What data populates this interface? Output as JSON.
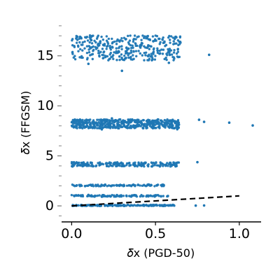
{
  "chart_data": {
    "type": "scatter",
    "title": "",
    "xlabel": "𝛿x (PGD-50)",
    "ylabel": "𝛿x (FFGSM)",
    "xlim": [
      -0.06,
      1.13
    ],
    "ylim": [
      -1.6,
      18.2
    ],
    "x_ticks": [
      0.0,
      0.5,
      1.0
    ],
    "x_tick_labels": [
      "0.0",
      "0.5",
      "1.0"
    ],
    "y_ticks": [
      0,
      5,
      10,
      15
    ],
    "y_tick_labels": [
      "0",
      "5",
      "10",
      "15"
    ],
    "y_minor_ticks": [
      -1,
      1,
      2,
      3,
      4,
      6,
      7,
      8,
      9,
      11,
      12,
      13,
      14,
      16,
      17,
      18
    ],
    "grid": false,
    "legend": null,
    "colors": {
      "points": "#1f77b4",
      "reference_line": "#000000",
      "axes": "#000000"
    },
    "series": [
      {
        "points": [
          [
            0.04,
            0.05
          ],
          [
            0.11,
            0.02
          ],
          [
            0.22,
            0.08
          ],
          [
            0.28,
            0.03
          ],
          [
            0.54,
            0.01
          ],
          [
            0.74,
            0.03
          ],
          [
            0.79,
            0.04
          ],
          [
            0.04,
            1.04
          ],
          [
            0.1,
            1.1
          ],
          [
            0.18,
            0.92
          ],
          [
            0.27,
            1.08
          ],
          [
            0.47,
            1.03
          ],
          [
            0.57,
            0.95
          ],
          [
            0.03,
            2.05
          ],
          [
            0.08,
            1.98
          ],
          [
            0.2,
            2.12
          ],
          [
            0.27,
            2.03
          ],
          [
            0.46,
            2.14
          ],
          [
            0.55,
            2.06
          ],
          [
            0.05,
            4.08
          ],
          [
            0.12,
            4.3
          ],
          [
            0.21,
            3.98
          ],
          [
            0.3,
            4.22
          ],
          [
            0.43,
            4.25
          ],
          [
            0.56,
            4.1
          ],
          [
            0.62,
            3.95
          ],
          [
            0.75,
            4.37
          ],
          [
            0.04,
            8.5
          ],
          [
            0.11,
            8.12
          ],
          [
            0.18,
            7.65
          ],
          [
            0.24,
            8.74
          ],
          [
            0.31,
            8.31
          ],
          [
            0.39,
            8.08
          ],
          [
            0.48,
            8.42
          ],
          [
            0.56,
            8.31
          ],
          [
            0.63,
            7.66
          ],
          [
            0.76,
            8.61
          ],
          [
            0.79,
            8.4
          ],
          [
            0.94,
            8.32
          ],
          [
            1.08,
            8.04
          ],
          [
            0.05,
            16.9
          ],
          [
            0.1,
            14.2
          ],
          [
            0.17,
            16.4
          ],
          [
            0.23,
            15.8
          ],
          [
            0.3,
            13.5
          ],
          [
            0.45,
            15.8
          ],
          [
            0.52,
            16.7
          ],
          [
            0.58,
            14.3
          ],
          [
            0.82,
            15.1
          ]
        ]
      }
    ],
    "reference_line": {
      "style": "dashed",
      "x": [
        0.0,
        1.0
      ],
      "y": [
        0.0,
        1.0
      ]
    },
    "clusters": [
      {
        "x_range": [
          0.0,
          0.62
        ],
        "y_center": 0.05,
        "y_spread": 0.06,
        "count": 180
      },
      {
        "x_range": [
          0.0,
          0.58
        ],
        "y_center": 1.0,
        "y_spread": 0.08,
        "count": 110
      },
      {
        "x_range": [
          0.0,
          0.55
        ],
        "y_center": 2.05,
        "y_spread": 0.08,
        "count": 90
      },
      {
        "x_range": [
          0.0,
          0.64
        ],
        "y_center": 4.15,
        "y_spread": 0.22,
        "count": 190
      },
      {
        "x_range": [
          0.0,
          0.64
        ],
        "y_center": 8.2,
        "y_spread": 0.45,
        "count": 470
      },
      {
        "x_range": [
          0.0,
          0.65
        ],
        "y_center": 15.8,
        "y_spread": 1.25,
        "count": 350
      }
    ]
  }
}
